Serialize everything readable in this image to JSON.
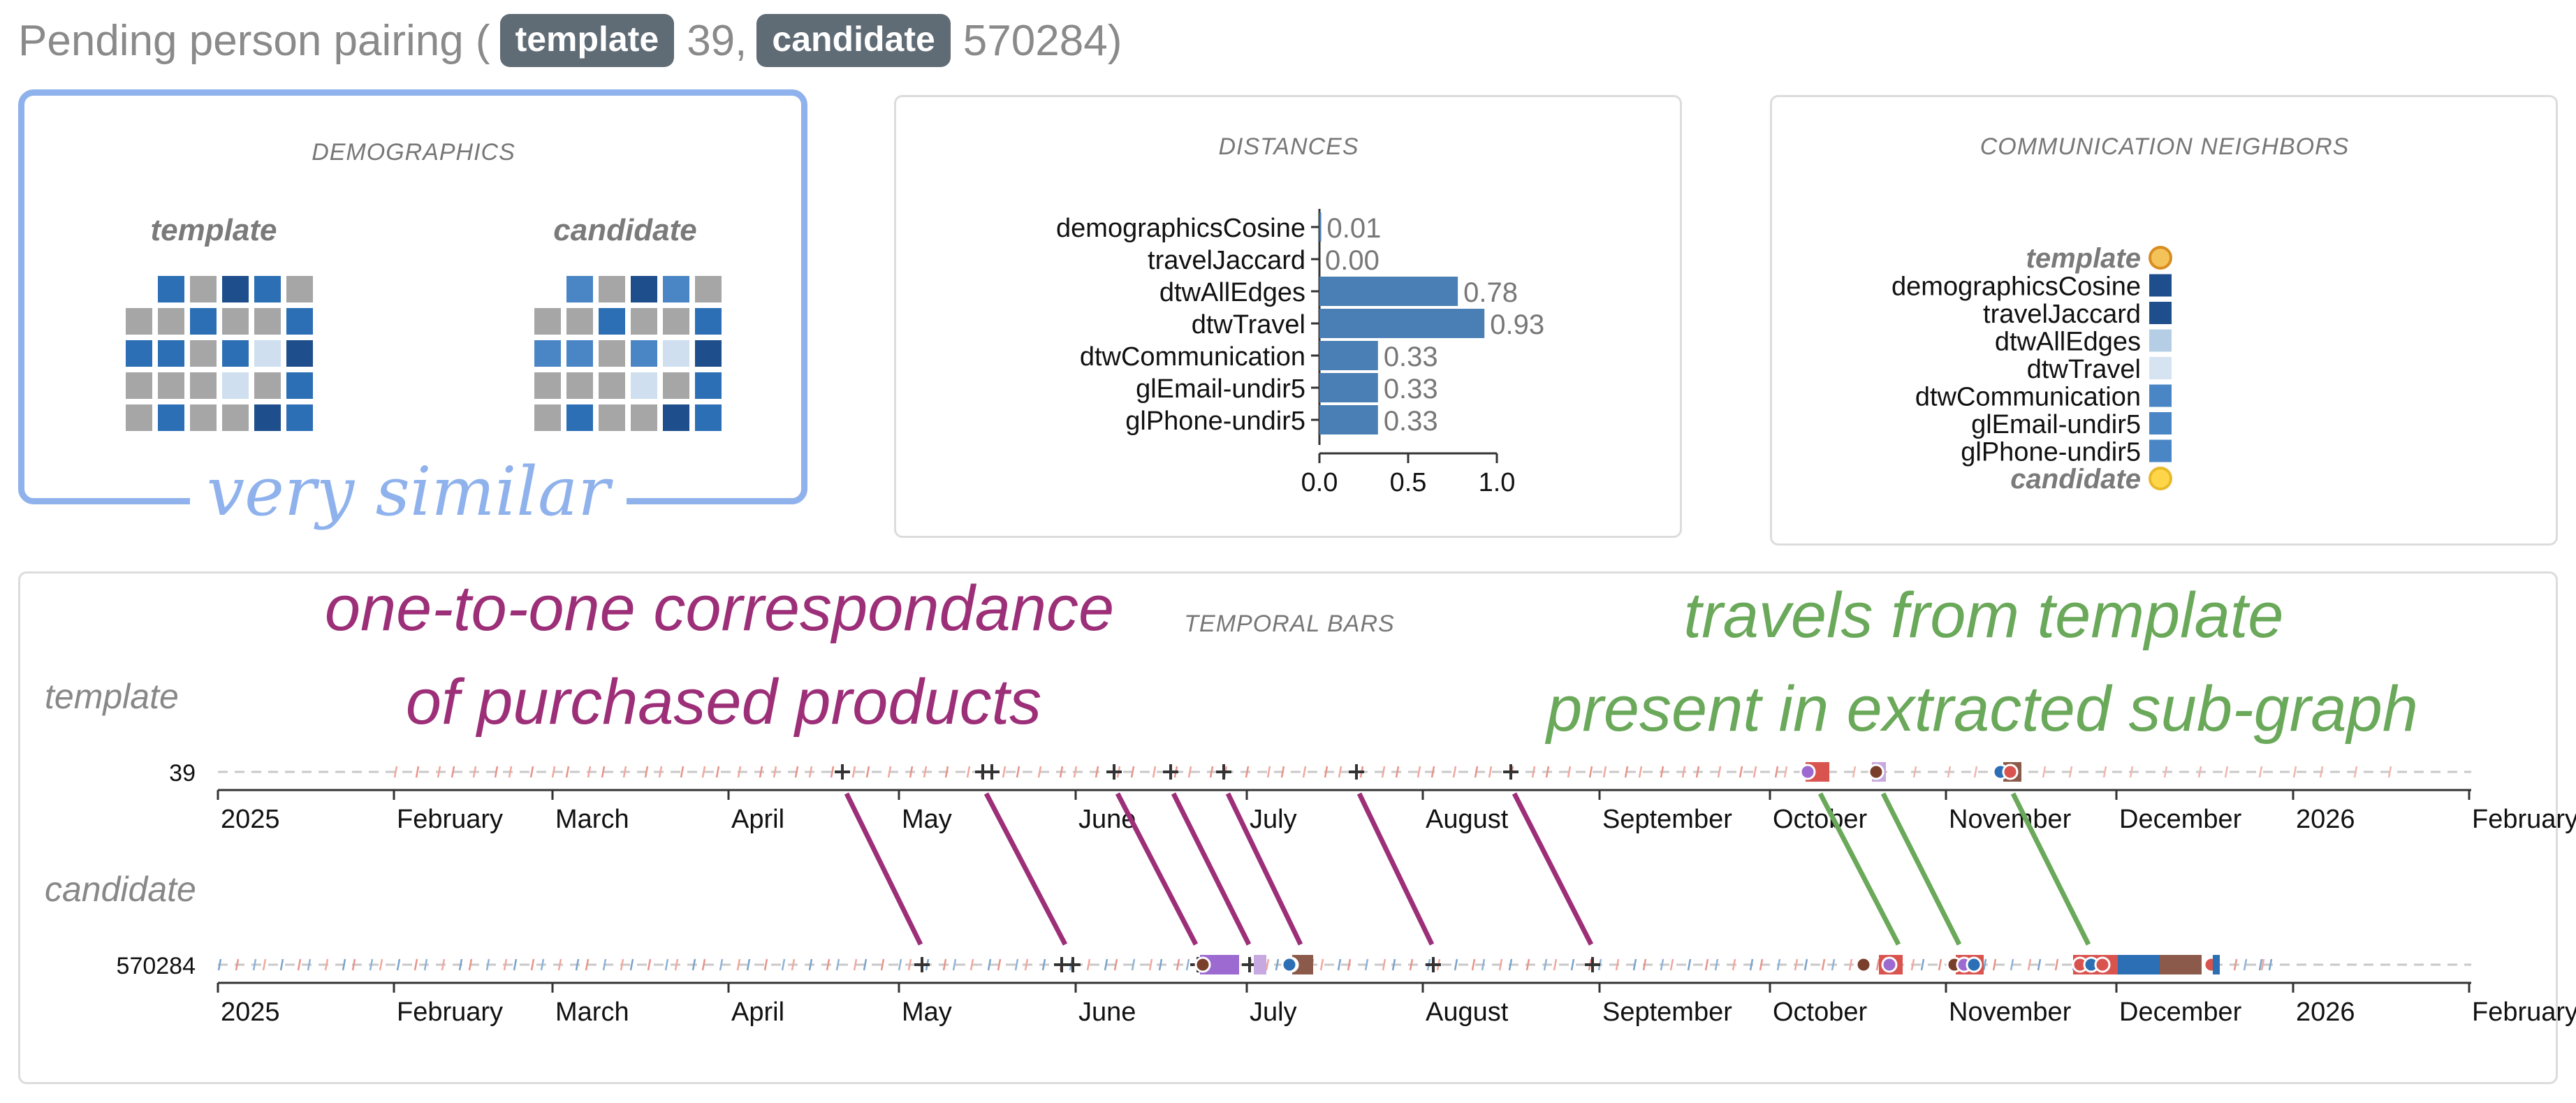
{
  "header": {
    "title_prefix": "Pending person pairing (",
    "template_badge": "template",
    "template_id": "39",
    "separator": ",",
    "candidate_badge": "candidate",
    "candidate_id": "570284",
    "title_suffix": ")"
  },
  "demographics": {
    "title": "DEMOGRAPHICS",
    "template_label": "template",
    "candidate_label": "candidate",
    "annotation": "very similar",
    "colors": {
      "g": "#a6a6a6",
      "d": "#1f4e8c",
      "m": "#2c6fb5",
      "l": "#cfdff0",
      "b": "#4a86c5"
    },
    "template_grid": [
      [
        "_",
        "m",
        "g",
        "d",
        "m",
        "g"
      ],
      [
        "g",
        "g",
        "m",
        "g",
        "g",
        "m"
      ],
      [
        "m",
        "m",
        "g",
        "m",
        "l",
        "d"
      ],
      [
        "g",
        "g",
        "g",
        "l",
        "g",
        "m"
      ],
      [
        "g",
        "m",
        "g",
        "g",
        "d",
        "m"
      ]
    ],
    "candidate_grid": [
      [
        "_",
        "b",
        "g",
        "d",
        "b",
        "g"
      ],
      [
        "g",
        "g",
        "m",
        "g",
        "g",
        "m"
      ],
      [
        "b",
        "b",
        "g",
        "b",
        "l",
        "d"
      ],
      [
        "g",
        "g",
        "g",
        "l",
        "g",
        "m"
      ],
      [
        "g",
        "m",
        "g",
        "g",
        "d",
        "m"
      ]
    ]
  },
  "distances": {
    "title": "DISTANCES",
    "bar_color": "#4a7fb5",
    "xlim": [
      0,
      1
    ],
    "ticks": [
      "0.0",
      "0.5",
      "1.0"
    ],
    "items": [
      {
        "name": "demographicsCosine",
        "value": 0.01,
        "label": "0.01"
      },
      {
        "name": "travelJaccard",
        "value": 0.0,
        "label": "0.00"
      },
      {
        "name": "dtwAllEdges",
        "value": 0.78,
        "label": "0.78"
      },
      {
        "name": "dtwTravel",
        "value": 0.93,
        "label": "0.93"
      },
      {
        "name": "dtwCommunication",
        "value": 0.33,
        "label": "0.33"
      },
      {
        "name": "glEmail-undir5",
        "value": 0.33,
        "label": "0.33"
      },
      {
        "name": "glPhone-undir5",
        "value": 0.33,
        "label": "0.33"
      }
    ]
  },
  "neighbors": {
    "title": "COMMUNICATION NEIGHBORS",
    "items": [
      {
        "label": "template",
        "kind": "template",
        "color": "#d98c1f"
      },
      {
        "label": "demographicsCosine",
        "kind": "metric",
        "color": "#1f4e8c"
      },
      {
        "label": "travelJaccard",
        "kind": "metric",
        "color": "#1f4e8c"
      },
      {
        "label": "dtwAllEdges",
        "kind": "metric",
        "color": "#b5cee6"
      },
      {
        "label": "dtwTravel",
        "kind": "metric",
        "color": "#d6e4f1"
      },
      {
        "label": "dtwCommunication",
        "kind": "metric",
        "color": "#4a86c5"
      },
      {
        "label": "glEmail-undir5",
        "kind": "metric",
        "color": "#4a86c5"
      },
      {
        "label": "glPhone-undir5",
        "kind": "metric",
        "color": "#4a86c5"
      },
      {
        "label": "candidate",
        "kind": "candidate",
        "color": "#ffd54a"
      }
    ]
  },
  "temporal": {
    "title": "TEMPORAL BARS",
    "template_row_label": "template",
    "template_id": "39",
    "candidate_row_label": "candidate",
    "candidate_id": "570284",
    "month_labels": [
      "2025",
      "February",
      "March",
      "April",
      "May",
      "June",
      "July",
      "August",
      "September",
      "October",
      "November",
      "December",
      "2026",
      "February"
    ],
    "annotations": {
      "products_line1": "one-to-one correspondance",
      "products_line2": "of purchased products",
      "travels_line1": "travels from template",
      "travels_line2": "present in extracted sub-graph"
    },
    "colors": {
      "product": "#9c2f78",
      "travel": "#6aa85a"
    }
  }
}
